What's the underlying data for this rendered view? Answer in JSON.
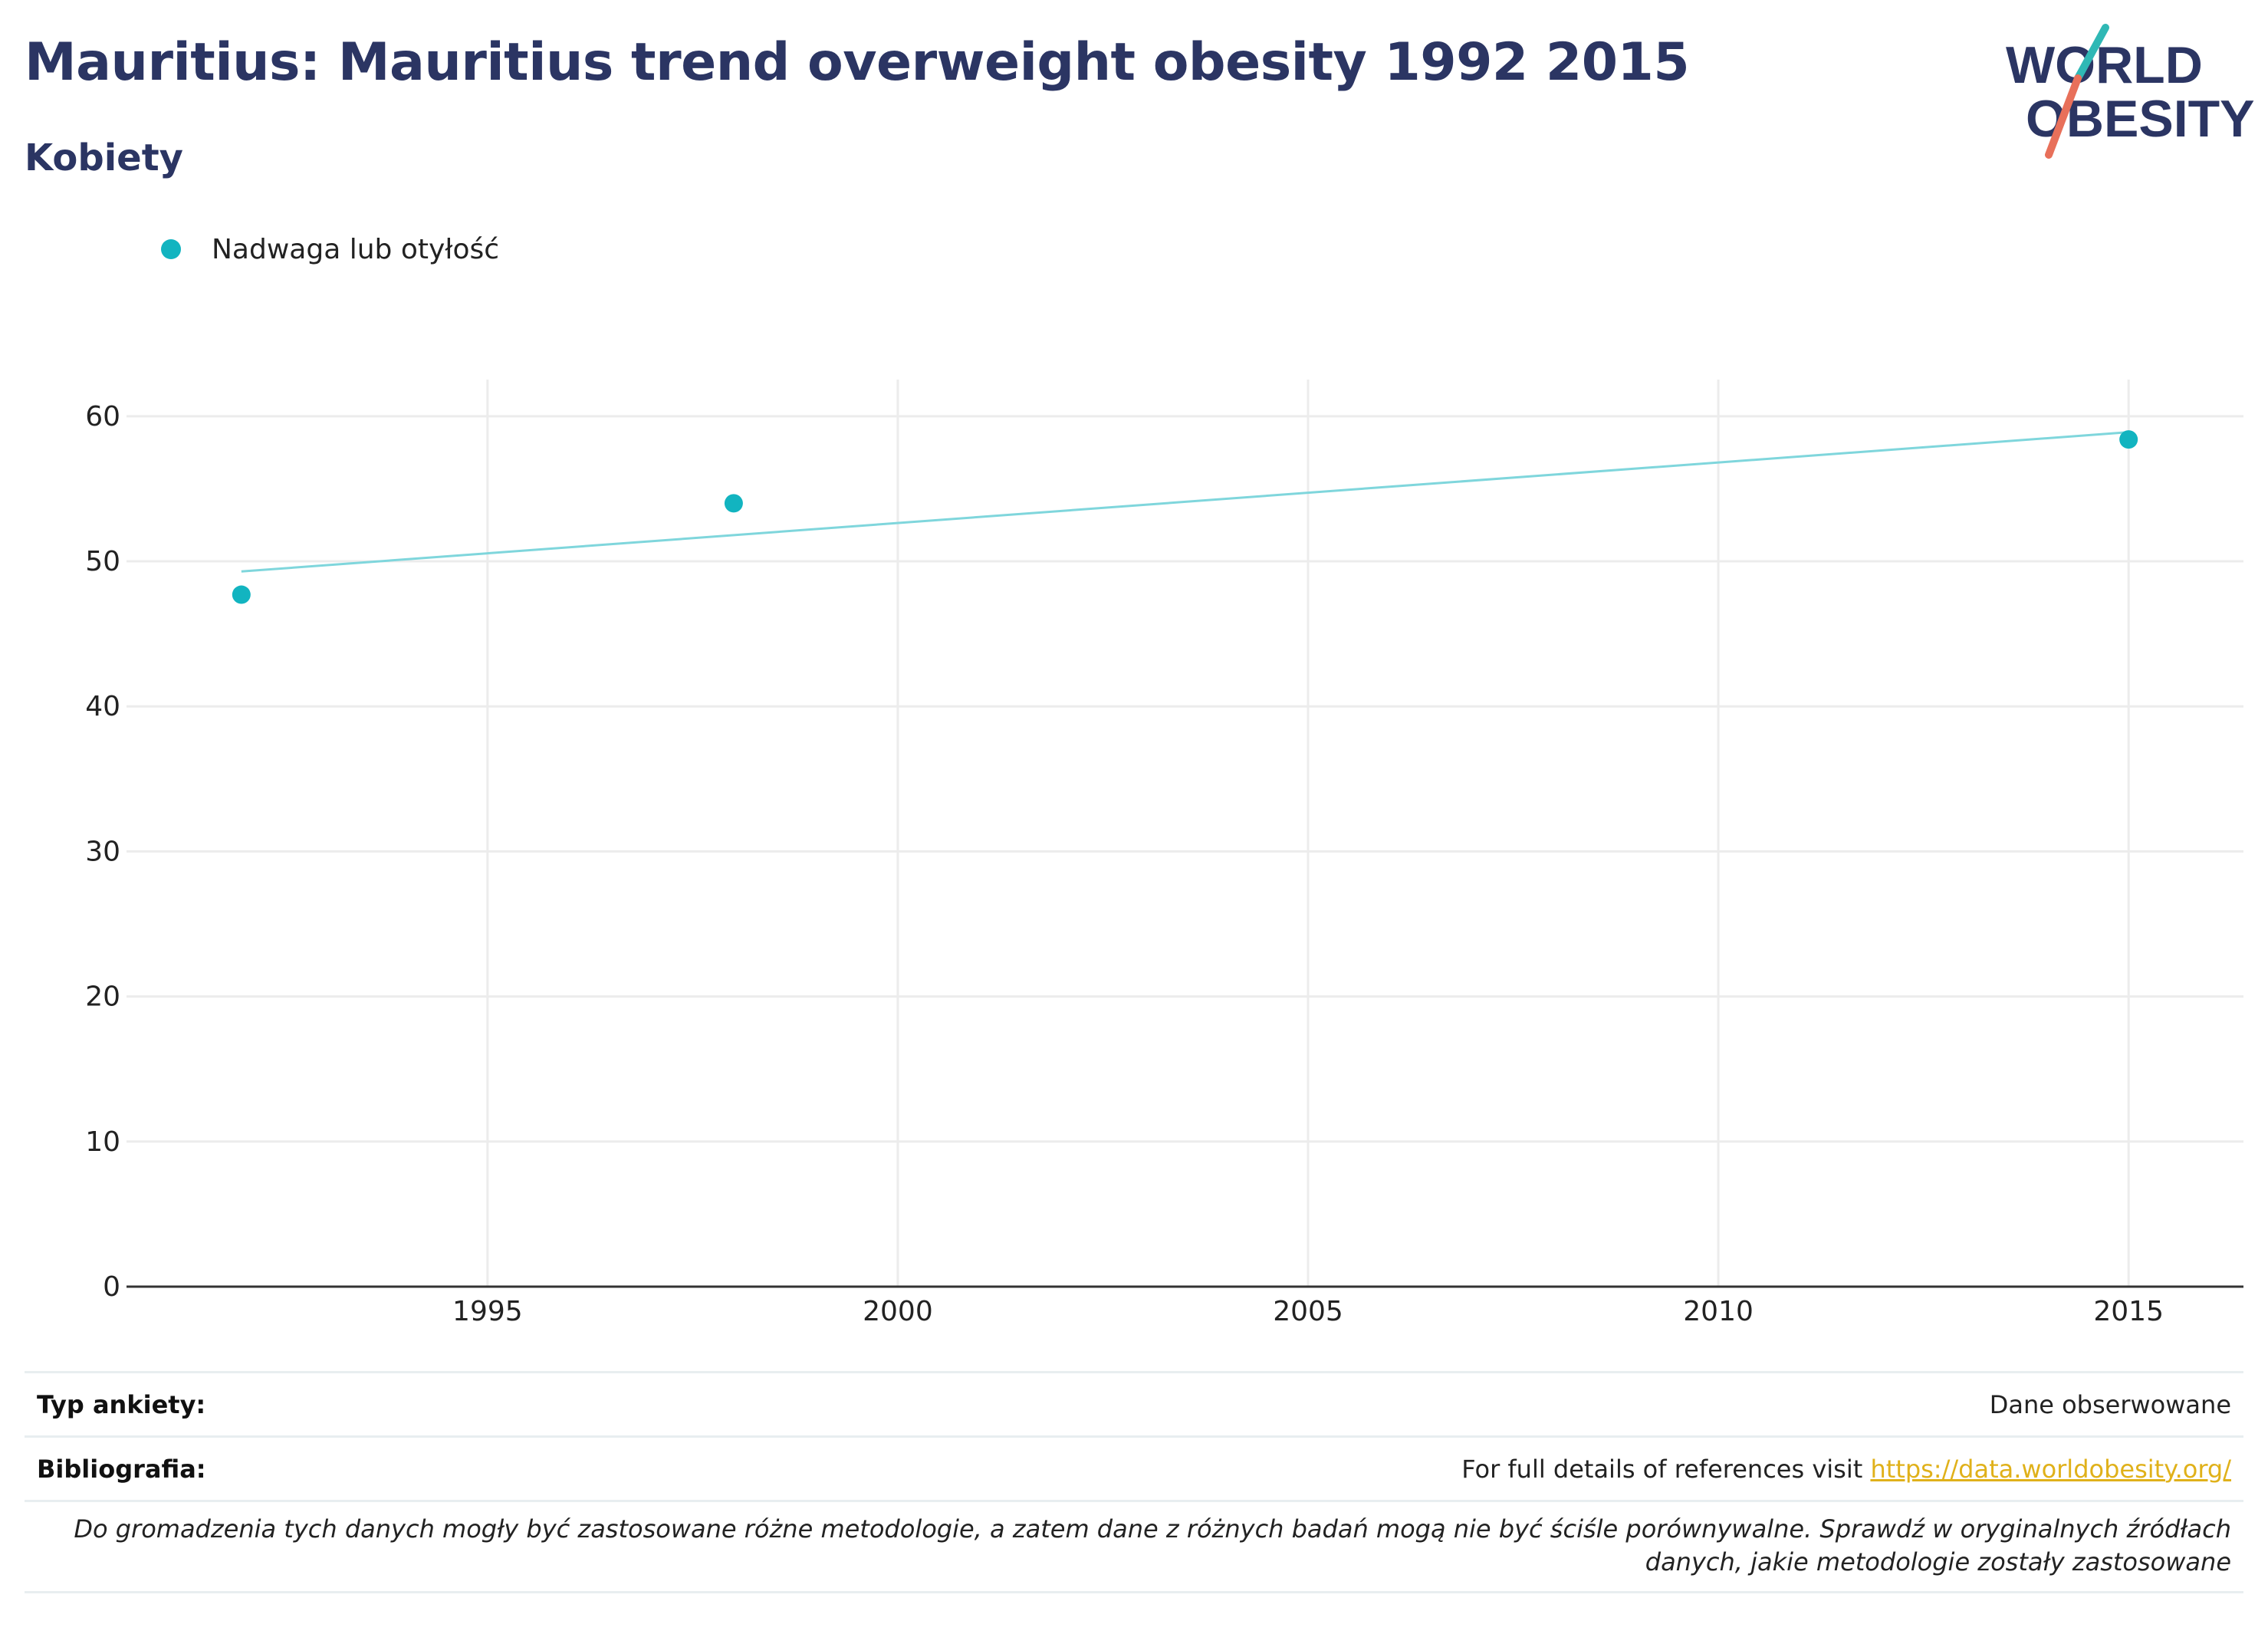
{
  "title": "Mauritius: Mauritius trend overweight obesity 1992 2015",
  "subtitle": "Kobiety",
  "logo": {
    "line1": "WORLD",
    "line2": "OBESITY"
  },
  "colors": {
    "series": "#12b4c0",
    "trend": "#7fd6dc",
    "title": "#2b3563",
    "link": "#e0b11a"
  },
  "chart_data": {
    "type": "scatter",
    "series": [
      {
        "name": "Nadwaga lub otyłość",
        "x": [
          1992,
          1998,
          2015
        ],
        "y": [
          47.7,
          54.0,
          58.4
        ]
      }
    ],
    "trendline": {
      "x": [
        1992,
        2015
      ],
      "y": [
        49.3,
        58.9
      ]
    },
    "xticks": [
      1995,
      2000,
      2005,
      2010,
      2015
    ],
    "yticks": [
      0,
      10,
      20,
      30,
      40,
      50,
      60
    ],
    "xlim": [
      1990.6,
      2016.4
    ],
    "ylim": [
      0,
      62
    ],
    "grid": true,
    "legend_position": "top-left"
  },
  "meta": {
    "survey_label": "Typ ankiety:",
    "survey_value": "Dane obserwowane",
    "biblio_label": "Bibliografia:",
    "biblio_text": "For full details of references visit ",
    "biblio_link": "https://data.worldobesity.org/",
    "note": "Do gromadzenia tych danych mogły być zastosowane różne metodologie, a zatem dane z różnych badań mogą nie być ściśle porównywalne. Sprawdź w oryginalnych źródłach danych, jakie metodologie zostały zastosowane"
  }
}
